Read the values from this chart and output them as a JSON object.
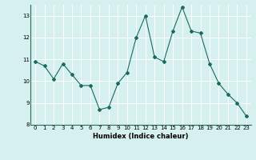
{
  "x": [
    0,
    1,
    2,
    3,
    4,
    5,
    6,
    7,
    8,
    9,
    10,
    11,
    12,
    13,
    14,
    15,
    16,
    17,
    18,
    19,
    20,
    21,
    22,
    23
  ],
  "y": [
    10.9,
    10.7,
    10.1,
    10.8,
    10.3,
    9.8,
    9.8,
    8.7,
    8.8,
    9.9,
    10.4,
    12.0,
    13.0,
    11.1,
    10.9,
    12.3,
    13.4,
    12.3,
    12.2,
    10.8,
    9.9,
    9.4,
    9.0,
    8.4
  ],
  "xlabel": "Humidex (Indice chaleur)",
  "ylim": [
    8,
    13.5
  ],
  "xlim": [
    -0.5,
    23.5
  ],
  "yticks": [
    8,
    9,
    10,
    11,
    12,
    13
  ],
  "xticks": [
    0,
    1,
    2,
    3,
    4,
    5,
    6,
    7,
    8,
    9,
    10,
    11,
    12,
    13,
    14,
    15,
    16,
    17,
    18,
    19,
    20,
    21,
    22,
    23
  ],
  "line_color": "#1a6b5e",
  "marker": "D",
  "marker_size": 2.0,
  "bg_color": "#d6f0ef",
  "grid_color": "#ffffff",
  "grid_minor_color": "#c8e8e6",
  "xlabel_fontsize": 6.0,
  "tick_fontsize": 5.0
}
